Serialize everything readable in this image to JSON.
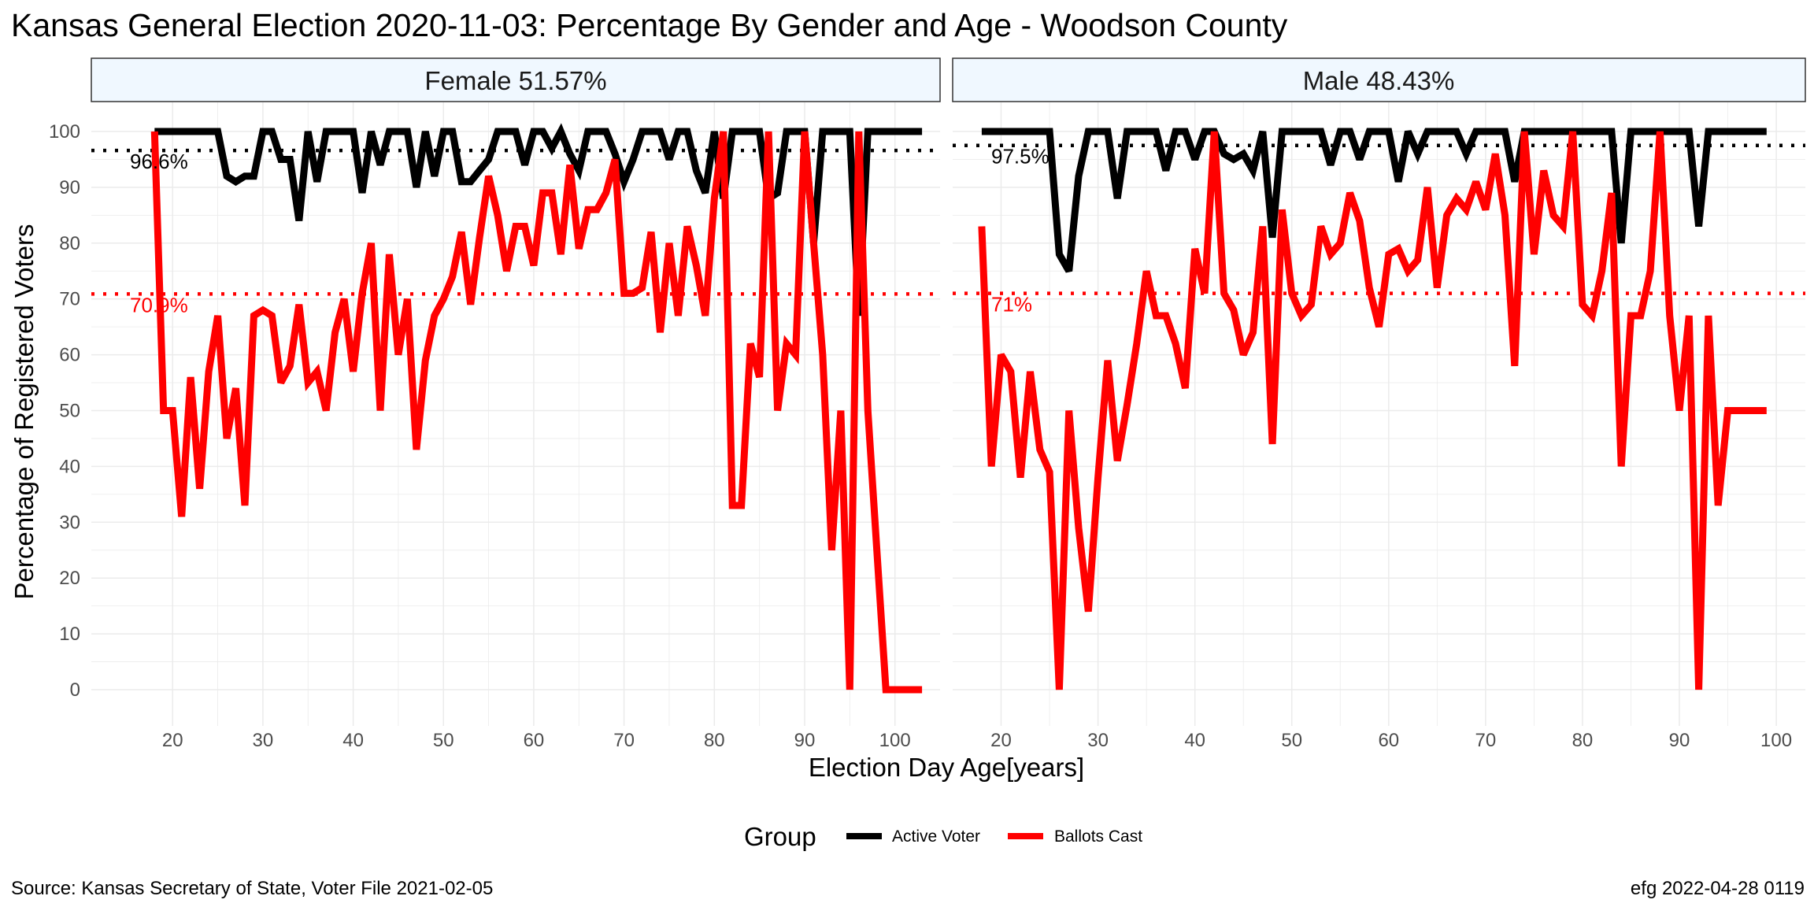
{
  "title": "Kansas General Election 2020-11-03:  Percentage By Gender and Age - Woodson County",
  "caption_left": "Source:  Kansas Secretary of State, Voter File  2021-02-05",
  "caption_right": "efg 2022-04-28 0119",
  "colors": {
    "active": "#000000",
    "ballots": "#ff0000",
    "strip_fill": "#f0f8ff",
    "grid": "#ebebeb"
  },
  "chart_data": {
    "type": "line",
    "xlabel": "Election Day Age[years]",
    "ylabel": "Percentage of Registered Voters",
    "ylim": [
      0,
      100
    ],
    "y_ticks": [
      0,
      10,
      20,
      30,
      40,
      50,
      60,
      70,
      80,
      90,
      100
    ],
    "x_ticks": [
      20,
      30,
      40,
      50,
      60,
      70,
      80,
      90,
      100
    ],
    "grid": true,
    "legend": {
      "title": "Group",
      "position": "bottom",
      "entries": [
        {
          "label": "Active Voter",
          "color": "#000000"
        },
        {
          "label": "Ballots Cast",
          "color": "#ff0000"
        }
      ]
    },
    "panels": [
      {
        "label": "Female 51.57%",
        "xlim": [
          11,
          105
        ],
        "reference_lines": {
          "active": 96.6,
          "ballots": 70.9,
          "active_label": "96.6%",
          "ballots_label": "70.9%"
        },
        "series": [
          {
            "name": "Active Voter",
            "x": [
              18,
              19,
              20,
              21,
              22,
              23,
              24,
              25,
              26,
              27,
              28,
              29,
              30,
              31,
              32,
              33,
              34,
              35,
              36,
              37,
              38,
              39,
              40,
              41,
              42,
              43,
              44,
              45,
              46,
              47,
              48,
              49,
              50,
              51,
              52,
              53,
              54,
              55,
              56,
              57,
              58,
              59,
              60,
              61,
              62,
              63,
              64,
              65,
              66,
              67,
              68,
              69,
              70,
              71,
              72,
              73,
              74,
              75,
              76,
              77,
              78,
              79,
              80,
              81,
              82,
              83,
              84,
              85,
              86,
              87,
              88,
              89,
              90,
              91,
              92,
              93,
              94,
              95,
              96,
              97,
              98,
              99,
              100,
              101,
              102,
              103
            ],
            "y": [
              100,
              100,
              100,
              100,
              100,
              100,
              100,
              100,
              92,
              91,
              92,
              92,
              100,
              100,
              95,
              95,
              84,
              100,
              91,
              100,
              100,
              100,
              100,
              89,
              100,
              94,
              100,
              100,
              100,
              90,
              100,
              92,
              100,
              100,
              91,
              91,
              93,
              95,
              100,
              100,
              100,
              94,
              100,
              100,
              97,
              100,
              96,
              93,
              100,
              100,
              100,
              96,
              91,
              95,
              100,
              100,
              100,
              95,
              100,
              100,
              93,
              89,
              100,
              88,
              100,
              100,
              100,
              100,
              88,
              89,
              100,
              100,
              100,
              80,
              100,
              100,
              100,
              100,
              67,
              100,
              100,
              100,
              100,
              100,
              100,
              100
            ]
          },
          {
            "name": "Ballots Cast",
            "x": [
              18,
              19,
              20,
              21,
              22,
              23,
              24,
              25,
              26,
              27,
              28,
              29,
              30,
              31,
              32,
              33,
              34,
              35,
              36,
              37,
              38,
              39,
              40,
              41,
              42,
              43,
              44,
              45,
              46,
              47,
              48,
              49,
              50,
              51,
              52,
              53,
              54,
              55,
              56,
              57,
              58,
              59,
              60,
              61,
              62,
              63,
              64,
              65,
              66,
              67,
              68,
              69,
              70,
              71,
              72,
              73,
              74,
              75,
              76,
              77,
              78,
              79,
              80,
              81,
              82,
              83,
              84,
              85,
              86,
              87,
              88,
              89,
              90,
              91,
              92,
              93,
              94,
              95,
              96,
              97,
              98,
              99,
              100,
              101,
              102,
              103
            ],
            "y": [
              100,
              50,
              50,
              31,
              56,
              36,
              57,
              67,
              45,
              54,
              33,
              67,
              68,
              67,
              55,
              58,
              69,
              55,
              57,
              50,
              64,
              70,
              57,
              71,
              80,
              50,
              78,
              60,
              70,
              43,
              59,
              67,
              70,
              74,
              82,
              69,
              81,
              92,
              85,
              75,
              83,
              83,
              76,
              89,
              89,
              78,
              94,
              79,
              86,
              86,
              89,
              95,
              71,
              71,
              72,
              82,
              64,
              80,
              67,
              83,
              76,
              67,
              88,
              100,
              33,
              33,
              62,
              56,
              100,
              50,
              62,
              60,
              100,
              80,
              60,
              25,
              50,
              0,
              100,
              50,
              25,
              0,
              0,
              0,
              0,
              0
            ]
          }
        ]
      },
      {
        "label": "Male 48.43%",
        "xlim": [
          15,
          103
        ],
        "reference_lines": {
          "active": 97.5,
          "ballots": 71,
          "active_label": "97.5%",
          "ballots_label": "71%"
        },
        "series": [
          {
            "name": "Active Voter",
            "x": [
              18,
              19,
              20,
              21,
              22,
              23,
              24,
              25,
              26,
              27,
              28,
              29,
              30,
              31,
              32,
              33,
              34,
              35,
              36,
              37,
              38,
              39,
              40,
              41,
              42,
              43,
              44,
              45,
              46,
              47,
              48,
              49,
              50,
              51,
              52,
              53,
              54,
              55,
              56,
              57,
              58,
              59,
              60,
              61,
              62,
              63,
              64,
              65,
              66,
              67,
              68,
              69,
              70,
              71,
              72,
              73,
              74,
              75,
              76,
              77,
              78,
              79,
              80,
              81,
              82,
              83,
              84,
              85,
              86,
              87,
              88,
              89,
              90,
              91,
              92,
              93,
              94,
              95,
              96,
              97,
              98,
              99
            ],
            "y": [
              100,
              100,
              100,
              100,
              100,
              100,
              100,
              100,
              78,
              75,
              92,
              100,
              100,
              100,
              88,
              100,
              100,
              100,
              100,
              93,
              100,
              100,
              95,
              100,
              100,
              96,
              95,
              96,
              93,
              100,
              81,
              100,
              100,
              100,
              100,
              100,
              94,
              100,
              100,
              95,
              100,
              100,
              100,
              91,
              100,
              96,
              100,
              100,
              100,
              100,
              96,
              100,
              100,
              100,
              100,
              91,
              100,
              100,
              100,
              100,
              100,
              100,
              100,
              100,
              100,
              100,
              80,
              100,
              100,
              100,
              100,
              100,
              100,
              100,
              83,
              100,
              100,
              100,
              100,
              100,
              100,
              100
            ]
          },
          {
            "name": "Ballots Cast",
            "x": [
              18,
              19,
              20,
              21,
              22,
              23,
              24,
              25,
              26,
              27,
              28,
              29,
              30,
              31,
              32,
              33,
              34,
              35,
              36,
              37,
              38,
              39,
              40,
              41,
              42,
              43,
              44,
              45,
              46,
              47,
              48,
              49,
              50,
              51,
              52,
              53,
              54,
              55,
              56,
              57,
              58,
              59,
              60,
              61,
              62,
              63,
              64,
              65,
              66,
              67,
              68,
              69,
              70,
              71,
              72,
              73,
              74,
              75,
              76,
              77,
              78,
              79,
              80,
              81,
              82,
              83,
              84,
              85,
              86,
              87,
              88,
              89,
              90,
              91,
              92,
              93,
              94,
              95,
              96,
              97,
              98,
              99
            ],
            "y": [
              83,
              40,
              60,
              57,
              38,
              57,
              43,
              39,
              0,
              50,
              29,
              14,
              38,
              59,
              41,
              51,
              62,
              75,
              67,
              67,
              62,
              54,
              79,
              71,
              100,
              71,
              68,
              60,
              64,
              83,
              44,
              86,
              71,
              67,
              69,
              83,
              78,
              80,
              89,
              84,
              72,
              65,
              78,
              79,
              75,
              77,
              90,
              72,
              85,
              88,
              86,
              91,
              86,
              96,
              85,
              58,
              100,
              78,
              93,
              85,
              83,
              100,
              69,
              67,
              75,
              89,
              40,
              67,
              67,
              75,
              100,
              67,
              50,
              67,
              0,
              67,
              33,
              50,
              50,
              50,
              50,
              50
            ]
          }
        ]
      }
    ]
  }
}
